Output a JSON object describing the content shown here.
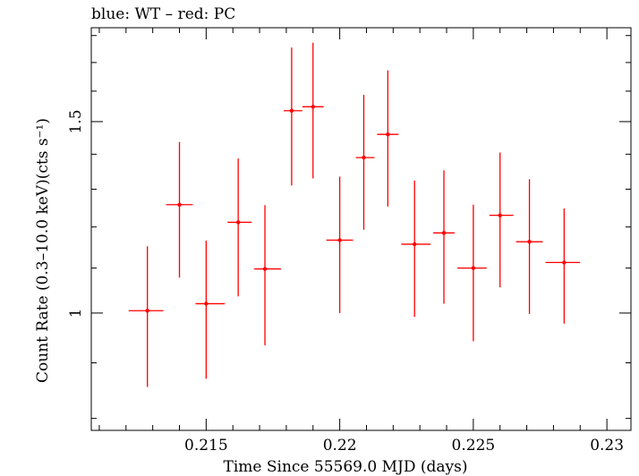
{
  "chart_data": {
    "type": "scatter",
    "title": "blue: WT – red: PC",
    "xlabel": "Time Since 55569.0 MJD (days)",
    "ylabel": "Count Rate (0.3–10.0 keV)(cts s⁻¹)",
    "xlim": [
      0.2107,
      0.2309
    ],
    "ylim": [
      0.78,
      1.83
    ],
    "ylog": true,
    "grid": false,
    "x_ticks": [
      0.215,
      0.22,
      0.225,
      0.23
    ],
    "x_tick_labels": [
      "0.215",
      "0.22",
      "0.225",
      "0.23"
    ],
    "y_ticks": [
      1,
      1.5
    ],
    "y_tick_labels": [
      "1",
      "1.5"
    ],
    "series": [
      {
        "color": "#ff0000",
        "points": [
          {
            "x": 0.2128,
            "xlo": 0.2121,
            "xhi": 0.2134,
            "y": 1.005,
            "ylo": 0.855,
            "yhi": 1.152
          },
          {
            "x": 0.214,
            "xlo": 0.2135,
            "xhi": 0.2145,
            "y": 1.258,
            "ylo": 1.078,
            "yhi": 1.437
          },
          {
            "x": 0.215,
            "xlo": 0.2146,
            "xhi": 0.2157,
            "y": 1.02,
            "ylo": 0.87,
            "yhi": 1.166
          },
          {
            "x": 0.2162,
            "xlo": 0.2158,
            "xhi": 0.2167,
            "y": 1.212,
            "ylo": 1.036,
            "yhi": 1.387
          },
          {
            "x": 0.2172,
            "xlo": 0.2168,
            "xhi": 0.2178,
            "y": 1.098,
            "ylo": 0.934,
            "yhi": 1.257
          },
          {
            "x": 0.2182,
            "xlo": 0.2179,
            "xhi": 0.2186,
            "y": 1.535,
            "ylo": 1.31,
            "yhi": 1.755
          },
          {
            "x": 0.219,
            "xlo": 0.2186,
            "xhi": 0.2194,
            "y": 1.548,
            "ylo": 1.33,
            "yhi": 1.773
          },
          {
            "x": 0.22,
            "xlo": 0.2195,
            "xhi": 0.2205,
            "y": 1.167,
            "ylo": 1.0,
            "yhi": 1.335
          },
          {
            "x": 0.2209,
            "xlo": 0.2206,
            "xhi": 0.2213,
            "y": 1.39,
            "ylo": 1.193,
            "yhi": 1.588
          },
          {
            "x": 0.2218,
            "xlo": 0.2214,
            "xhi": 0.2222,
            "y": 1.46,
            "ylo": 1.253,
            "yhi": 1.672
          },
          {
            "x": 0.2228,
            "xlo": 0.2223,
            "xhi": 0.2234,
            "y": 1.157,
            "ylo": 0.992,
            "yhi": 1.324
          },
          {
            "x": 0.2239,
            "xlo": 0.2235,
            "xhi": 0.2243,
            "y": 1.185,
            "ylo": 1.02,
            "yhi": 1.353
          },
          {
            "x": 0.225,
            "xlo": 0.2244,
            "xhi": 0.2255,
            "y": 1.1,
            "ylo": 0.942,
            "yhi": 1.258
          },
          {
            "x": 0.226,
            "xlo": 0.2256,
            "xhi": 0.2265,
            "y": 1.23,
            "ylo": 1.056,
            "yhi": 1.405
          },
          {
            "x": 0.2271,
            "xlo": 0.2266,
            "xhi": 0.2276,
            "y": 1.163,
            "ylo": 0.998,
            "yhi": 1.328
          },
          {
            "x": 0.2284,
            "xlo": 0.2277,
            "xhi": 0.229,
            "y": 1.113,
            "ylo": 0.978,
            "yhi": 1.248
          }
        ]
      }
    ]
  }
}
